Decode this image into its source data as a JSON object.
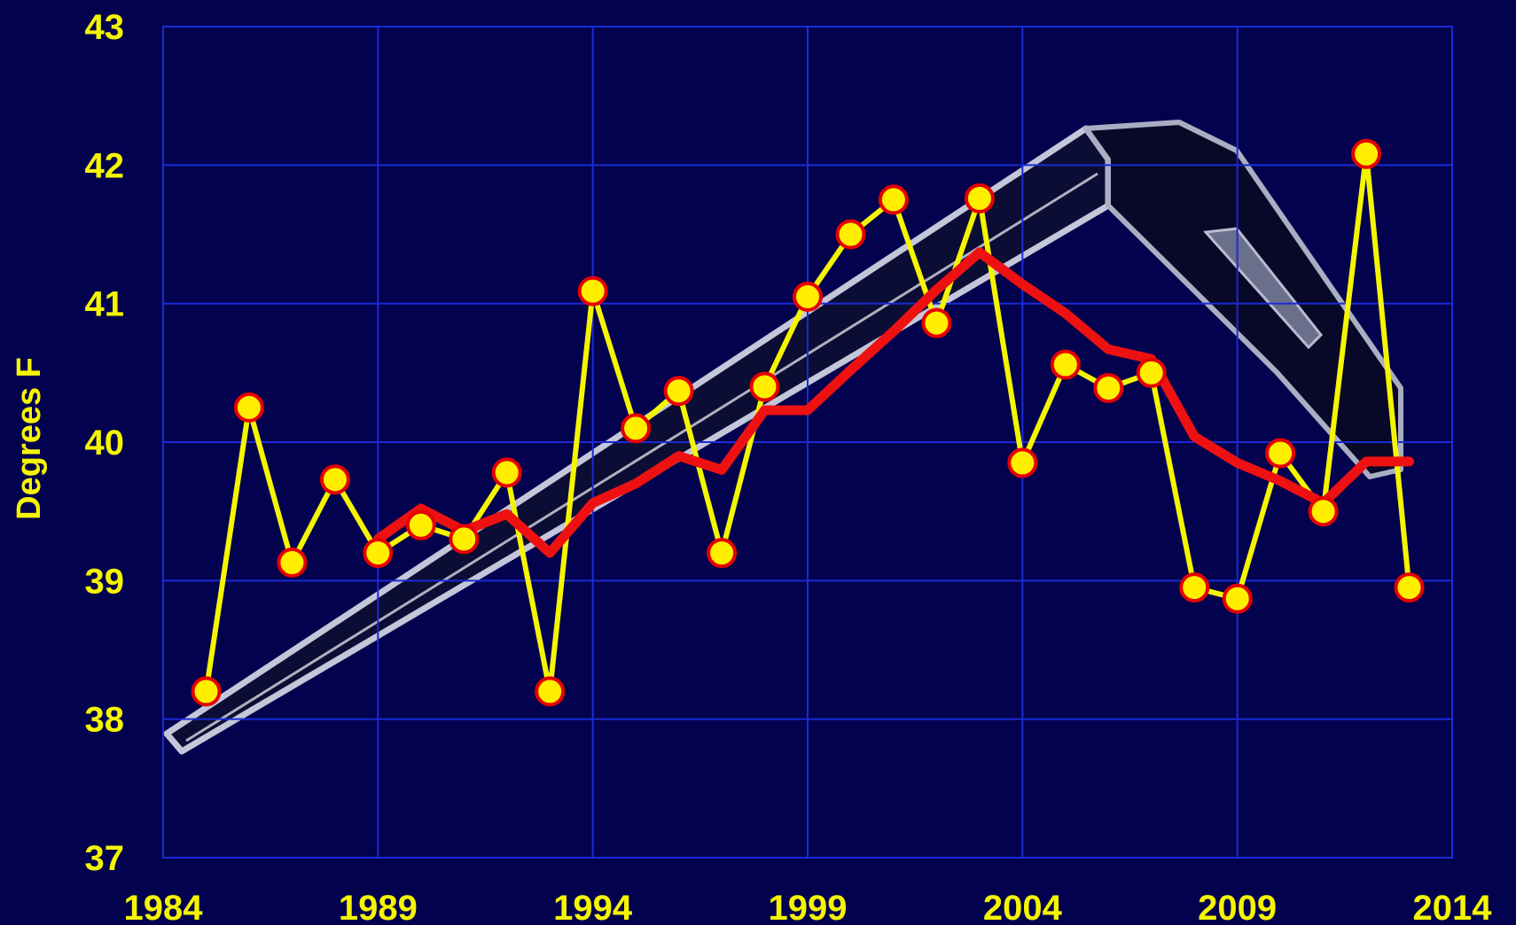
{
  "chart_data": {
    "type": "line",
    "title": "",
    "xlabel": "",
    "ylabel": "Degrees F",
    "xlim": [
      1984,
      2014
    ],
    "ylim": [
      37,
      43
    ],
    "x_ticks": [
      "1984",
      "1989",
      "1994",
      "1999",
      "2004",
      "2009",
      "2014"
    ],
    "y_ticks": [
      "37",
      "38",
      "39",
      "40",
      "41",
      "42",
      "43"
    ],
    "grid": true,
    "background_color": "#02024e",
    "grid_color": "#1a2bd6",
    "background_image": "hockey-stick-image",
    "series": [
      {
        "style": "line-with-markers",
        "color": "#f5f500",
        "marker_fill": "#ffee00",
        "marker_edge": "#e60000",
        "x": [
          1985,
          1986,
          1987,
          1988,
          1989,
          1990,
          1991,
          1992,
          1993,
          1994,
          1995,
          1996,
          1997,
          1998,
          1999,
          2000,
          2001,
          2002,
          2003,
          2004,
          2005,
          2006,
          2007,
          2008,
          2009,
          2010,
          2011,
          2012,
          2013
        ],
        "values": [
          38.2,
          40.25,
          39.13,
          39.73,
          39.2,
          39.4,
          39.3,
          39.78,
          38.2,
          41.09,
          40.1,
          40.37,
          39.2,
          40.4,
          41.05,
          41.5,
          41.75,
          40.86,
          41.76,
          39.85,
          40.56,
          40.39,
          40.5,
          38.95,
          38.87,
          39.92,
          39.5,
          42.08,
          38.95
        ]
      },
      {
        "style": "line",
        "color": "#ee1111",
        "x": [
          1989,
          1990,
          1991,
          1992,
          1993,
          1994,
          1995,
          1996,
          1997,
          1998,
          1999,
          2000,
          2001,
          2002,
          2003,
          2004,
          2005,
          2006,
          2007,
          2008,
          2009,
          2010,
          2011,
          2012,
          2013
        ],
        "values": [
          39.3,
          39.52,
          39.36,
          39.48,
          39.2,
          39.56,
          39.7,
          39.9,
          39.8,
          40.23,
          40.23,
          40.52,
          40.8,
          41.1,
          41.37,
          41.14,
          40.93,
          40.67,
          40.6,
          40.04,
          39.85,
          39.72,
          39.56,
          39.86,
          39.86
        ]
      }
    ]
  }
}
